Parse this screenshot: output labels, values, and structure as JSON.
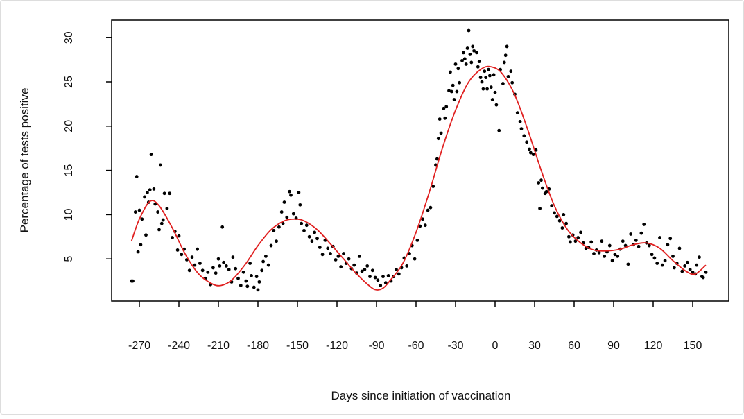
{
  "chart_data": {
    "type": "scatter",
    "title": "",
    "xlabel": "Days since initiation of vaccination",
    "ylabel": "Percentage of tests positive",
    "xlim": [
      -285,
      165
    ],
    "ylim": [
      0,
      32
    ],
    "xticks": [
      -270,
      -240,
      -210,
      -180,
      -150,
      -120,
      -90,
      -60,
      -30,
      0,
      30,
      60,
      90,
      120,
      150
    ],
    "yticks": [
      5,
      10,
      15,
      20,
      25,
      30
    ],
    "grid": false,
    "colors": {
      "points": "#000000",
      "fit": "#e02020"
    },
    "points": [
      [
        -276,
        2.5
      ],
      [
        -275,
        2.5
      ],
      [
        -273,
        10.3
      ],
      [
        -272,
        14.3
      ],
      [
        -271,
        5.8
      ],
      [
        -270,
        10.5
      ],
      [
        -269,
        6.6
      ],
      [
        -268,
        9.5
      ],
      [
        -266,
        12.0
      ],
      [
        -265,
        7.7
      ],
      [
        -264,
        12.5
      ],
      [
        -263,
        11.4
      ],
      [
        -262,
        12.8
      ],
      [
        -261,
        16.8
      ],
      [
        -259,
        12.9
      ],
      [
        -258,
        11.2
      ],
      [
        -256,
        10.3
      ],
      [
        -255,
        8.3
      ],
      [
        -254,
        15.6
      ],
      [
        -253,
        9.0
      ],
      [
        -252,
        9.4
      ],
      [
        -251,
        12.4
      ],
      [
        -249,
        10.7
      ],
      [
        -247,
        12.4
      ],
      [
        -245,
        7.4
      ],
      [
        -243,
        8.1
      ],
      [
        -241,
        6.0
      ],
      [
        -240,
        7.6
      ],
      [
        -238,
        5.5
      ],
      [
        -236,
        6.1
      ],
      [
        -234,
        4.9
      ],
      [
        -232,
        3.7
      ],
      [
        -230,
        5.2
      ],
      [
        -228,
        4.3
      ],
      [
        -226,
        6.1
      ],
      [
        -224,
        4.5
      ],
      [
        -222,
        3.7
      ],
      [
        -220,
        2.8
      ],
      [
        -218,
        3.5
      ],
      [
        -216,
        2.1
      ],
      [
        -214,
        4.0
      ],
      [
        -212,
        3.4
      ],
      [
        -210,
        5.0
      ],
      [
        -209,
        4.2
      ],
      [
        -207,
        8.6
      ],
      [
        -206,
        4.6
      ],
      [
        -204,
        4.2
      ],
      [
        -202,
        3.8
      ],
      [
        -200,
        2.4
      ],
      [
        -199,
        5.2
      ],
      [
        -197,
        3.9
      ],
      [
        -195,
        2.8
      ],
      [
        -193,
        2.0
      ],
      [
        -191,
        3.5
      ],
      [
        -189,
        2.5
      ],
      [
        -188,
        1.9
      ],
      [
        -186,
        4.5
      ],
      [
        -185,
        3.1
      ],
      [
        -183,
        1.8
      ],
      [
        -181,
        3.0
      ],
      [
        -180,
        1.5
      ],
      [
        -179,
        2.4
      ],
      [
        -177,
        3.7
      ],
      [
        -176,
        4.7
      ],
      [
        -174,
        5.3
      ],
      [
        -172,
        4.3
      ],
      [
        -170,
        6.5
      ],
      [
        -168,
        8.2
      ],
      [
        -166,
        7.0
      ],
      [
        -164,
        8.6
      ],
      [
        -162,
        10.3
      ],
      [
        -161,
        9.0
      ],
      [
        -160,
        11.4
      ],
      [
        -158,
        9.7
      ],
      [
        -156,
        12.6
      ],
      [
        -155,
        12.2
      ],
      [
        -153,
        10.1
      ],
      [
        -151,
        9.6
      ],
      [
        -149,
        12.5
      ],
      [
        -148,
        11.1
      ],
      [
        -147,
        9.0
      ],
      [
        -145,
        8.2
      ],
      [
        -143,
        8.8
      ],
      [
        -141,
        7.5
      ],
      [
        -139,
        7.0
      ],
      [
        -137,
        8.0
      ],
      [
        -135,
        7.3
      ],
      [
        -133,
        6.3
      ],
      [
        -131,
        5.5
      ],
      [
        -129,
        7.1
      ],
      [
        -127,
        6.2
      ],
      [
        -125,
        5.6
      ],
      [
        -123,
        6.4
      ],
      [
        -121,
        4.9
      ],
      [
        -119,
        5.3
      ],
      [
        -117,
        4.1
      ],
      [
        -115,
        5.6
      ],
      [
        -113,
        4.5
      ],
      [
        -111,
        5.0
      ],
      [
        -109,
        3.9
      ],
      [
        -107,
        4.3
      ],
      [
        -105,
        3.4
      ],
      [
        -103,
        5.3
      ],
      [
        -101,
        3.6
      ],
      [
        -99,
        3.8
      ],
      [
        -97,
        4.2
      ],
      [
        -95,
        3.0
      ],
      [
        -93,
        3.7
      ],
      [
        -91,
        2.9
      ],
      [
        -89,
        2.6
      ],
      [
        -87,
        2.0
      ],
      [
        -85,
        3.0
      ],
      [
        -83,
        2.3
      ],
      [
        -81,
        3.1
      ],
      [
        -79,
        2.5
      ],
      [
        -77,
        3.0
      ],
      [
        -75,
        3.8
      ],
      [
        -73,
        3.3
      ],
      [
        -71,
        4.0
      ],
      [
        -69,
        5.1
      ],
      [
        -67,
        4.2
      ],
      [
        -65,
        5.6
      ],
      [
        -63,
        6.5
      ],
      [
        -61,
        5.0
      ],
      [
        -59,
        7.1
      ],
      [
        -57,
        8.7
      ],
      [
        -55,
        9.5
      ],
      [
        -53,
        8.8
      ],
      [
        -51,
        10.5
      ],
      [
        -49,
        10.8
      ],
      [
        -47,
        13.2
      ],
      [
        -45,
        15.6
      ],
      [
        -44,
        16.3
      ],
      [
        -43,
        18.6
      ],
      [
        -42,
        20.8
      ],
      [
        -41,
        19.2
      ],
      [
        -39,
        22.0
      ],
      [
        -38,
        20.9
      ],
      [
        -37,
        22.2
      ],
      [
        -35,
        24.0
      ],
      [
        -34,
        26.1
      ],
      [
        -33,
        23.9
      ],
      [
        -32,
        24.6
      ],
      [
        -31,
        23.0
      ],
      [
        -30,
        27.0
      ],
      [
        -29,
        23.9
      ],
      [
        -28,
        26.5
      ],
      [
        -27,
        24.9
      ],
      [
        -25,
        27.4
      ],
      [
        -24,
        28.3
      ],
      [
        -23,
        27.6
      ],
      [
        -22,
        27.0
      ],
      [
        -21,
        28.8
      ],
      [
        -20,
        30.8
      ],
      [
        -19,
        28.1
      ],
      [
        -18,
        27.2
      ],
      [
        -17,
        29.0
      ],
      [
        -16,
        28.5
      ],
      [
        -14,
        28.3
      ],
      [
        -13,
        26.7
      ],
      [
        -12,
        27.3
      ],
      [
        -11,
        25.5
      ],
      [
        -10,
        25.0
      ],
      [
        -9,
        24.2
      ],
      [
        -8,
        26.2
      ],
      [
        -7,
        25.5
      ],
      [
        -6,
        24.2
      ],
      [
        -5,
        26.4
      ],
      [
        -4,
        25.7
      ],
      [
        -3,
        24.4
      ],
      [
        -2,
        23.0
      ],
      [
        -1,
        25.8
      ],
      [
        0,
        23.8
      ],
      [
        1,
        22.4
      ],
      [
        3,
        19.5
      ],
      [
        4,
        26.4
      ],
      [
        6,
        24.8
      ],
      [
        7,
        27.2
      ],
      [
        8,
        28.0
      ],
      [
        9,
        29.0
      ],
      [
        10,
        25.6
      ],
      [
        12,
        26.2
      ],
      [
        13,
        24.9
      ],
      [
        15,
        23.6
      ],
      [
        17,
        21.5
      ],
      [
        19,
        20.5
      ],
      [
        20,
        19.7
      ],
      [
        22,
        18.9
      ],
      [
        24,
        18.2
      ],
      [
        26,
        17.4
      ],
      [
        27,
        17.0
      ],
      [
        29,
        16.8
      ],
      [
        31,
        17.3
      ],
      [
        33,
        13.6
      ],
      [
        34,
        10.7
      ],
      [
        35,
        13.9
      ],
      [
        36,
        13.0
      ],
      [
        38,
        12.4
      ],
      [
        39,
        12.6
      ],
      [
        41,
        12.9
      ],
      [
        43,
        11.0
      ],
      [
        45,
        10.2
      ],
      [
        47,
        9.8
      ],
      [
        49,
        9.3
      ],
      [
        51,
        8.5
      ],
      [
        52,
        10.0
      ],
      [
        54,
        9.0
      ],
      [
        56,
        7.5
      ],
      [
        57,
        6.9
      ],
      [
        59,
        7.7
      ],
      [
        61,
        7.0
      ],
      [
        63,
        7.4
      ],
      [
        65,
        8.0
      ],
      [
        67,
        6.8
      ],
      [
        69,
        6.2
      ],
      [
        71,
        6.3
      ],
      [
        73,
        6.9
      ],
      [
        75,
        5.6
      ],
      [
        77,
        6.0
      ],
      [
        79,
        5.7
      ],
      [
        81,
        7.0
      ],
      [
        83,
        5.3
      ],
      [
        85,
        5.8
      ],
      [
        87,
        6.5
      ],
      [
        89,
        4.8
      ],
      [
        91,
        5.5
      ],
      [
        93,
        5.3
      ],
      [
        95,
        6.1
      ],
      [
        97,
        7.0
      ],
      [
        99,
        6.5
      ],
      [
        101,
        4.4
      ],
      [
        103,
        7.8
      ],
      [
        105,
        6.6
      ],
      [
        107,
        7.1
      ],
      [
        109,
        6.4
      ],
      [
        111,
        7.9
      ],
      [
        113,
        8.9
      ],
      [
        115,
        6.8
      ],
      [
        117,
        6.5
      ],
      [
        119,
        5.5
      ],
      [
        121,
        5.1
      ],
      [
        123,
        4.5
      ],
      [
        125,
        7.4
      ],
      [
        127,
        4.3
      ],
      [
        129,
        4.8
      ],
      [
        131,
        6.6
      ],
      [
        133,
        7.3
      ],
      [
        135,
        5.3
      ],
      [
        136,
        4.0
      ],
      [
        138,
        4.5
      ],
      [
        140,
        6.2
      ],
      [
        142,
        3.6
      ],
      [
        144,
        4.2
      ],
      [
        146,
        4.6
      ],
      [
        148,
        3.8
      ],
      [
        150,
        3.5
      ],
      [
        152,
        3.3
      ],
      [
        153,
        4.3
      ],
      [
        155,
        5.2
      ],
      [
        157,
        3.0
      ],
      [
        158,
        2.9
      ],
      [
        160,
        3.5
      ]
    ],
    "fit": [
      [
        -276,
        7.0
      ],
      [
        -270,
        9.5
      ],
      [
        -262,
        11.5
      ],
      [
        -255,
        11.0
      ],
      [
        -245,
        8.5
      ],
      [
        -235,
        5.5
      ],
      [
        -225,
        3.3
      ],
      [
        -215,
        2.2
      ],
      [
        -208,
        2.0
      ],
      [
        -200,
        2.6
      ],
      [
        -190,
        4.3
      ],
      [
        -180,
        6.5
      ],
      [
        -170,
        8.3
      ],
      [
        -160,
        9.3
      ],
      [
        -152,
        9.5
      ],
      [
        -145,
        9.3
      ],
      [
        -135,
        8.3
      ],
      [
        -125,
        6.7
      ],
      [
        -115,
        5.0
      ],
      [
        -105,
        3.3
      ],
      [
        -95,
        1.9
      ],
      [
        -90,
        1.5
      ],
      [
        -85,
        1.7
      ],
      [
        -80,
        2.5
      ],
      [
        -70,
        4.5
      ],
      [
        -60,
        8.0
      ],
      [
        -50,
        12.5
      ],
      [
        -40,
        17.5
      ],
      [
        -30,
        21.8
      ],
      [
        -20,
        25.0
      ],
      [
        -10,
        26.5
      ],
      [
        -3,
        26.7
      ],
      [
        5,
        26.0
      ],
      [
        15,
        23.5
      ],
      [
        25,
        19.5
      ],
      [
        35,
        15.0
      ],
      [
        45,
        11.0
      ],
      [
        55,
        8.3
      ],
      [
        65,
        6.8
      ],
      [
        75,
        6.0
      ],
      [
        85,
        5.9
      ],
      [
        95,
        6.1
      ],
      [
        105,
        6.6
      ],
      [
        115,
        6.8
      ],
      [
        125,
        6.2
      ],
      [
        135,
        4.8
      ],
      [
        145,
        3.6
      ],
      [
        152,
        3.3
      ],
      [
        160,
        4.3
      ]
    ]
  }
}
